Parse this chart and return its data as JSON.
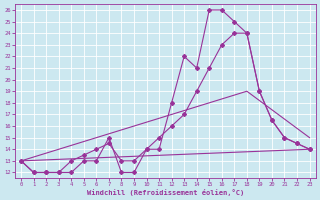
{
  "xlabel": "Windchill (Refroidissement éolien,°C)",
  "xlim": [
    -0.5,
    23.5
  ],
  "ylim": [
    11.5,
    26.5
  ],
  "yticks": [
    12,
    13,
    14,
    15,
    16,
    17,
    18,
    19,
    20,
    21,
    22,
    23,
    24,
    25,
    26
  ],
  "xticks": [
    0,
    1,
    2,
    3,
    4,
    5,
    6,
    7,
    8,
    9,
    10,
    11,
    12,
    13,
    14,
    15,
    16,
    17,
    18,
    19,
    20,
    21,
    22,
    23
  ],
  "bg_color": "#cce8f0",
  "grid_color": "#ffffff",
  "line_color": "#993399",
  "line1_x": [
    0,
    1,
    2,
    3,
    4,
    5,
    6,
    7,
    8,
    9,
    10,
    11,
    12,
    13,
    14,
    15,
    16,
    17,
    18,
    19,
    20,
    21,
    22,
    23
  ],
  "line1_y": [
    13,
    12,
    12,
    12,
    12,
    13,
    13,
    15,
    12,
    12,
    14,
    14,
    18,
    22,
    21,
    26,
    26,
    25,
    24,
    19,
    16.5,
    15,
    14.5,
    14
  ],
  "line2_x": [
    0,
    1,
    2,
    3,
    4,
    5,
    6,
    7,
    8,
    9,
    10,
    11,
    12,
    13,
    14,
    15,
    16,
    17,
    18,
    19,
    20,
    21,
    22,
    23
  ],
  "line2_y": [
    13,
    12,
    12,
    12,
    13,
    13.5,
    14,
    14.5,
    13,
    13,
    14,
    15,
    16,
    17,
    19,
    21,
    23,
    24,
    24,
    19,
    16.5,
    15,
    14.5,
    14
  ],
  "line3_x": [
    0,
    23
  ],
  "line3_y": [
    13,
    14
  ],
  "line4_x": [
    0,
    18,
    23
  ],
  "line4_y": [
    13,
    19,
    15
  ]
}
